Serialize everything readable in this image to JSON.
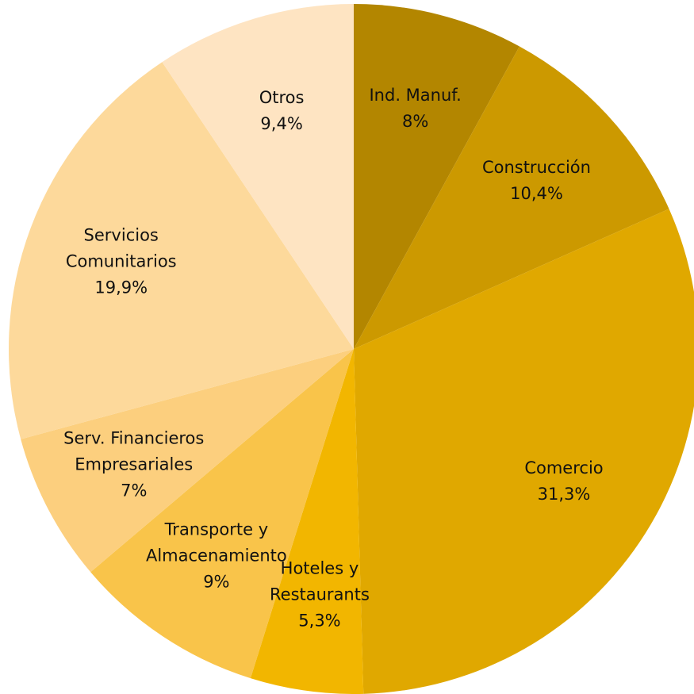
{
  "chart_data": {
    "type": "pie",
    "categories": [
      "Ind. Manuf.",
      "Construcción",
      "Comercio",
      "Hoteles y\nRestaurants",
      "Transporte y\nAlmacenamiento",
      "Serv. Financieros\nEmpresariales",
      "Servicios\nComunitarios",
      "Otros"
    ],
    "values": [
      8,
      10.4,
      31.3,
      5.3,
      9,
      7,
      19.9,
      9.4
    ],
    "value_labels": [
      "8%",
      "10,4%",
      "31,3%",
      "5,3%",
      "9%",
      "7%",
      "19,9%",
      "9,4%"
    ],
    "colors": [
      "#b38600",
      "#cc9900",
      "#e0a800",
      "#f2b600",
      "#f9c44a",
      "#fccf7e",
      "#fdd99b",
      "#fee4c2"
    ]
  }
}
